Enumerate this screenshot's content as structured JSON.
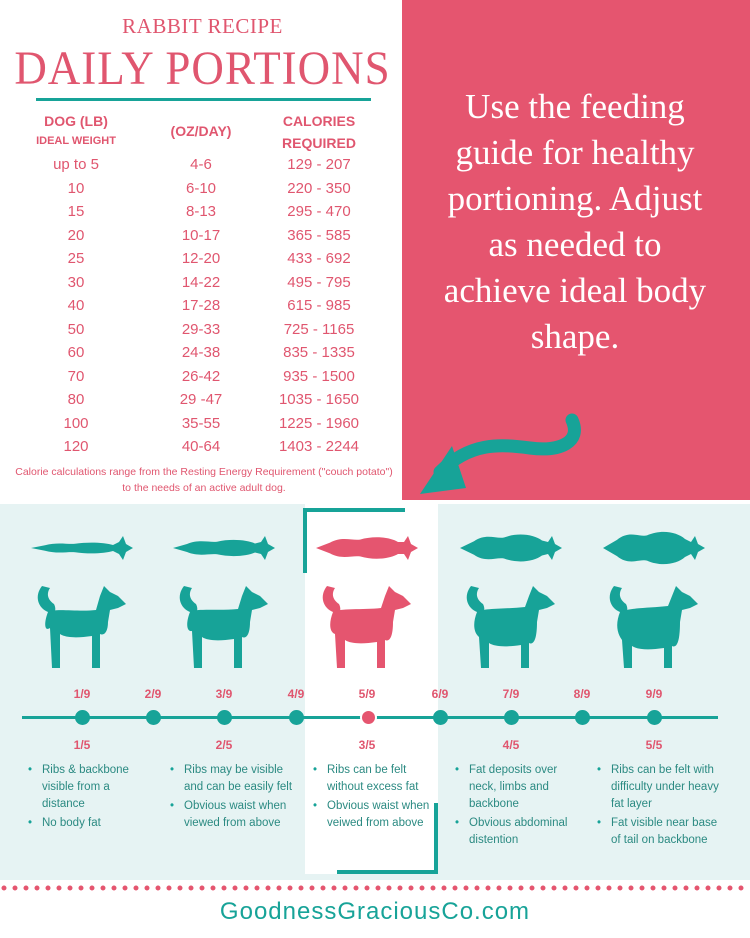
{
  "header": {
    "subtitle": "RABBIT RECIPE",
    "title": "DAILY PORTIONS"
  },
  "table": {
    "col1_line1": "DOG (LB)",
    "col1_line2": "IDEAL WEIGHT",
    "col2": "(OZ/DAY)",
    "col3_line1": "CALORIES",
    "col3_line2": "REQUIRED",
    "rows": [
      [
        "up to 5",
        "4-6",
        "129 - 207"
      ],
      [
        "10",
        "6-10",
        "220 - 350"
      ],
      [
        "15",
        "8-13",
        "295 - 470"
      ],
      [
        "20",
        "10-17",
        "365 - 585"
      ],
      [
        "25",
        "12-20",
        "433 - 692"
      ],
      [
        "30",
        "14-22",
        "495 - 795"
      ],
      [
        "40",
        "17-28",
        "615 - 985"
      ],
      [
        "50",
        "29-33",
        "725 - 1165"
      ],
      [
        "60",
        "24-38",
        "835 - 1335"
      ],
      [
        "70",
        "26-42",
        "935 - 1500"
      ],
      [
        "80",
        "29 -47",
        "1035 - 1650"
      ],
      [
        "100",
        "35-55",
        "1225 - 1960"
      ],
      [
        "120",
        "40-64",
        "1403 - 2244"
      ]
    ],
    "note": "Calorie calculations range from the Resting Energy Requirement (\"couch potato\") to the needs of an active adult dog."
  },
  "panel": {
    "text": "Use the feeding\nguide for healthy\nportioning. Adjust\nas needed to\nachieve ideal body\nshape."
  },
  "scale": {
    "nine": [
      "1/9",
      "2/9",
      "3/9",
      "4/9",
      "5/9",
      "6/9",
      "7/9",
      "8/9",
      "9/9"
    ],
    "five": [
      "1/5",
      "2/5",
      "3/5",
      "4/5",
      "5/5"
    ],
    "active": "5/9",
    "descriptions": [
      [
        "Ribs &  backbone visible from a distance",
        "No body fat"
      ],
      [
        "Ribs may be visible and can be easily felt",
        "Obvious waist when viewed from above"
      ],
      [
        "Ribs can be felt without excess fat",
        "Obvious waist when veiwed from above"
      ],
      [
        "Fat deposits over neck, limbs and backbone",
        "Obvious abdominal distention"
      ],
      [
        "Ribs can be felt with difficulty under heavy fat layer",
        "Fat visible near base of tail on backbone"
      ]
    ]
  },
  "colors": {
    "pink": "#e5556f",
    "teal": "#17a398",
    "light_bg": "#e6f3f3"
  },
  "footer": {
    "site": "GoodnessGraciousCo.com"
  }
}
